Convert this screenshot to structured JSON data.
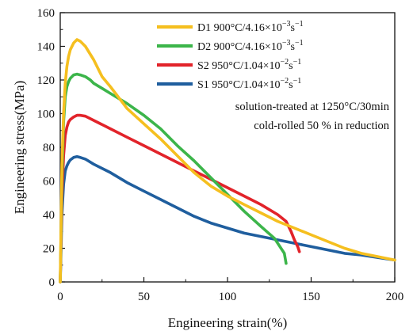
{
  "chart_data": {
    "type": "line",
    "xlabel": "Engineering strain(%)",
    "ylabel": "Engineering stress(MPa)",
    "xlim": [
      0,
      200
    ],
    "ylim": [
      0,
      160
    ],
    "xticks": [
      "0",
      "50",
      "100",
      "150",
      "200"
    ],
    "yticks": [
      "0",
      "20",
      "40",
      "60",
      "80",
      "100",
      "120",
      "140",
      "160"
    ],
    "grid": false,
    "legend_position": "top-right",
    "annotations": [
      "solution-treated  at 1250°C/30min",
      "cold-rolled 50 % in reduction"
    ],
    "series": [
      {
        "name": "D1",
        "label_prefix": "D1 900°C/4.16×10",
        "label_exp1": "−3",
        "label_mid": "s",
        "label_exp2": "−1",
        "color": "#F5BF1F",
        "x": [
          0,
          1,
          2,
          3,
          4,
          5,
          6,
          8,
          10,
          12,
          15,
          20,
          25,
          30,
          40,
          50,
          60,
          70,
          80,
          90,
          100,
          110,
          120,
          130,
          140,
          150,
          160,
          170,
          180,
          190,
          200
        ],
        "y": [
          0,
          70,
          100,
          118,
          128,
          134,
          138,
          142,
          144,
          143,
          140,
          132,
          122,
          116,
          103,
          94,
          85,
          75,
          65,
          57,
          51,
          46,
          41,
          36,
          32,
          28,
          24,
          20,
          17,
          15,
          13
        ]
      },
      {
        "name": "D2",
        "label_prefix": "D2 900°C/4.16×10",
        "label_exp1": "−3",
        "label_mid": "s",
        "label_exp2": "−1",
        "color": "#3CB54A",
        "x": [
          0,
          1,
          2,
          3,
          4,
          5,
          6,
          8,
          10,
          12,
          15,
          18,
          20,
          25,
          30,
          40,
          50,
          60,
          70,
          80,
          90,
          100,
          110,
          120,
          128,
          132,
          134,
          135
        ],
        "y": [
          0,
          60,
          95,
          110,
          116,
          119,
          121,
          123,
          123.5,
          123,
          122,
          120,
          118,
          115,
          112,
          106,
          99,
          91,
          81,
          72,
          62,
          52,
          42,
          33,
          26,
          20,
          17,
          11
        ]
      },
      {
        "name": "S2",
        "label_prefix": "S2 950°C/1.04×10",
        "label_exp1": "−2",
        "label_mid": "s",
        "label_exp2": "−1",
        "color": "#E2232A",
        "x": [
          0,
          1,
          2,
          3,
          4,
          5,
          6,
          8,
          10,
          12,
          15,
          20,
          30,
          40,
          50,
          60,
          70,
          80,
          90,
          100,
          110,
          120,
          130,
          135,
          138,
          140,
          142,
          143
        ],
        "y": [
          0,
          50,
          75,
          87,
          92,
          95,
          96.5,
          98,
          99,
          99,
          98.5,
          96,
          91,
          86,
          81,
          76,
          71,
          66,
          61,
          56,
          51,
          46,
          40,
          36,
          30,
          25,
          21,
          18
        ]
      },
      {
        "name": "S1",
        "label_prefix": "S1 950°C/1.04×10",
        "label_exp1": "−2",
        "label_mid": "s",
        "label_exp2": "−1",
        "color": "#1F5E9E",
        "x": [
          0,
          1,
          2,
          3,
          4,
          5,
          6,
          8,
          10,
          12,
          15,
          20,
          30,
          40,
          50,
          60,
          70,
          80,
          90,
          100,
          110,
          120,
          130,
          140,
          150,
          160,
          170,
          180,
          190,
          200
        ],
        "y": [
          0,
          40,
          58,
          66,
          69,
          71,
          72.5,
          74,
          74.5,
          74,
          73,
          70,
          65,
          59,
          54,
          49,
          44,
          39,
          35,
          32,
          29,
          27,
          25,
          23,
          21,
          19,
          17,
          16,
          14.5,
          13
        ]
      }
    ]
  }
}
